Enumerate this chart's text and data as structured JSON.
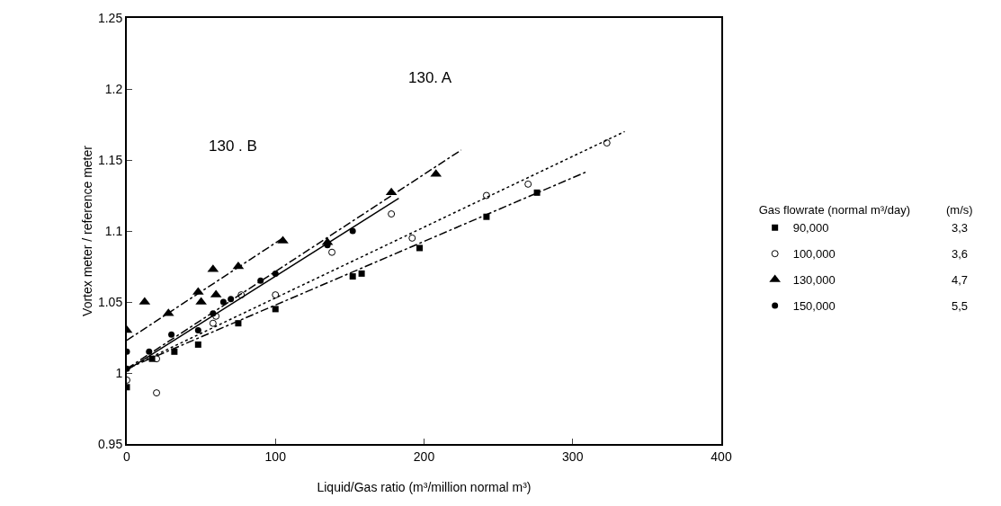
{
  "chart_data": {
    "type": "scatter",
    "xlabel": "Liquid/Gas ratio (m³/million normal m³)",
    "ylabel": "Vortex meter / reference meter",
    "legend_title": "Gas flowrate (normal m³/day)",
    "legend": "right",
    "grid": false,
    "xlim": [
      0,
      400
    ],
    "xticks": [
      0,
      100,
      200,
      300,
      400
    ],
    "ylim": [
      0.95,
      1.25
    ],
    "yticks": [
      0.95,
      1,
      1.05,
      1.1,
      1.15,
      1.2,
      1.25
    ],
    "series": [
      {
        "name": "90,000",
        "color": "#000000",
        "marker": "square",
        "x": [
          0,
          17,
          32,
          48,
          75,
          100,
          152,
          158,
          197,
          242,
          276
        ],
        "values": [
          0.99,
          1.01,
          1.015,
          1.02,
          1.035,
          1.045,
          1.068,
          1.07,
          1.088,
          1.11,
          1.127
        ]
      },
      {
        "name": "100,000",
        "color": "#000000",
        "marker": "circle-open",
        "x": [
          0,
          20,
          20,
          58,
          60,
          77,
          100,
          138,
          178,
          192,
          242,
          270,
          323
        ],
        "values": [
          0.995,
          0.986,
          1.01,
          1.035,
          1.04,
          1.055,
          1.055,
          1.085,
          1.112,
          1.095,
          1.125,
          1.133,
          1.162
        ]
      },
      {
        "name": "130,000",
        "color": "#000000",
        "marker": "triangle",
        "x": [
          0,
          12,
          28,
          48,
          50,
          58,
          60,
          75,
          105,
          135,
          178,
          208
        ],
        "values": [
          1.03,
          1.05,
          1.042,
          1.057,
          1.05,
          1.073,
          1.055,
          1.075,
          1.093,
          1.092,
          1.127,
          1.14
        ]
      },
      {
        "name": "150,000",
        "color": "#000000",
        "marker": "circle",
        "x": [
          0,
          0,
          15,
          30,
          48,
          58,
          65,
          70,
          90,
          100,
          135,
          152
        ],
        "values": [
          1.015,
          1.003,
          1.015,
          1.027,
          1.03,
          1.042,
          1.05,
          1.052,
          1.065,
          1.07,
          1.09,
          1.1
        ]
      },
      {
        "type": "line",
        "color": "#000000",
        "line_style": "dashed",
        "x": [
          0,
          310
        ],
        "values": [
          1.003,
          1.142
        ]
      },
      {
        "type": "line",
        "color": "#000000",
        "line_style": "dotted",
        "x": [
          0,
          335
        ],
        "values": [
          1.003,
          1.17
        ]
      },
      {
        "type": "line",
        "color": "#000000",
        "line_style": "dashed",
        "x": [
          0,
          105
        ],
        "values": [
          1.023,
          1.095
        ]
      },
      {
        "type": "line",
        "color": "#000000",
        "line_style": "dashed",
        "x": [
          0,
          225
        ],
        "values": [
          1.003,
          1.157
        ]
      },
      {
        "type": "line",
        "color": "#000000",
        "line_style": "solid",
        "x": [
          0,
          183
        ],
        "values": [
          1.002,
          1.123
        ]
      }
    ],
    "annotations": [
      "130. A",
      "130 . B",
      "(m/s)",
      "3,3",
      "3,6",
      "4,7",
      "5,5"
    ]
  }
}
